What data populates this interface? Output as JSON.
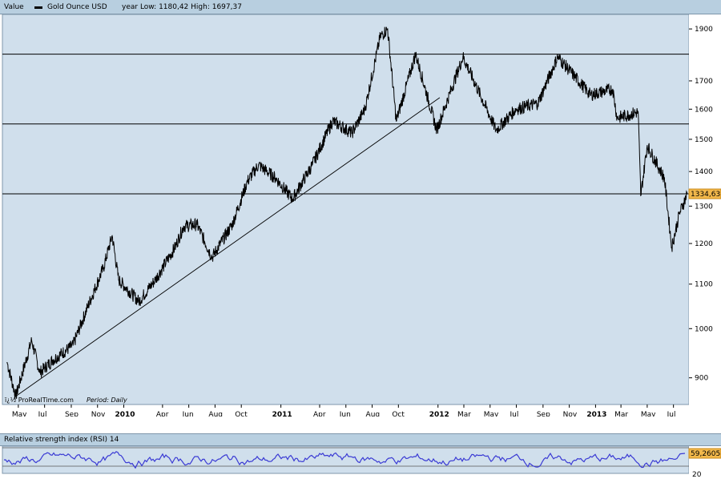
{
  "header": {
    "value_label": "Value",
    "series_name": "Gold Ounce USD",
    "year_range": "year Low: 1180,42 High: 1697,37"
  },
  "footer": {
    "credit": "ï¿½ ProRealTime.com",
    "period": "Period: Daily"
  },
  "rsi": {
    "title": "Relative strength index (RSI) 14",
    "last_value": "59,2605",
    "level_label": "20"
  },
  "colors": {
    "plot_bg": "#d0dfec",
    "price_line": "#000000",
    "rsi_line": "#3a3ad4",
    "marker_bg": "#f2b84b"
  },
  "chart_data": {
    "type": "line",
    "x_ticks": [
      "May",
      "Jul",
      "Sep",
      "Nov",
      "2010",
      "Apr",
      "Jun",
      "Aug",
      "Oct",
      "2011",
      "Apr",
      "Jun",
      "Aug",
      "Oct",
      "2012",
      "Mar",
      "May",
      "Jul",
      "Sep",
      "Nov",
      "2013",
      "Mar",
      "May",
      "Jul"
    ],
    "y_ticks": [
      900,
      1000,
      1100,
      1200,
      1300,
      1400,
      1500,
      1600,
      1700,
      1900
    ],
    "y_scale": "log",
    "ylim": [
      850,
      1960
    ],
    "series": [
      {
        "name": "Gold Ounce USD",
        "values": [
          [
            "2009-04-05",
            930
          ],
          [
            "2009-04-25",
            865
          ],
          [
            "2009-06-01",
            975
          ],
          [
            "2009-06-20",
            910
          ],
          [
            "2009-07-20",
            935
          ],
          [
            "2009-09-05",
            965
          ],
          [
            "2009-10-10",
            1050
          ],
          [
            "2009-11-15",
            1140
          ],
          [
            "2009-12-05",
            1220
          ],
          [
            "2009-12-20",
            1110
          ],
          [
            "2010-02-05",
            1060
          ],
          [
            "2010-03-15",
            1110
          ],
          [
            "2010-04-30",
            1190
          ],
          [
            "2010-05-20",
            1245
          ],
          [
            "2010-06-20",
            1250
          ],
          [
            "2010-07-25",
            1165
          ],
          [
            "2010-09-10",
            1250
          ],
          [
            "2010-10-15",
            1370
          ],
          [
            "2010-11-10",
            1420
          ],
          [
            "2010-12-20",
            1380
          ],
          [
            "2011-01-28",
            1320
          ],
          [
            "2011-03-15",
            1420
          ],
          [
            "2011-05-01",
            1560
          ],
          [
            "2011-06-15",
            1520
          ],
          [
            "2011-07-15",
            1600
          ],
          [
            "2011-08-20",
            1870
          ],
          [
            "2011-09-06",
            1900
          ],
          [
            "2011-09-26",
            1560
          ],
          [
            "2011-11-10",
            1800
          ],
          [
            "2011-12-29",
            1530
          ],
          [
            "2012-02-28",
            1790
          ],
          [
            "2012-05-15",
            1530
          ],
          [
            "2012-06-30",
            1600
          ],
          [
            "2012-08-20",
            1620
          ],
          [
            "2012-10-05",
            1790
          ],
          [
            "2012-12-20",
            1650
          ],
          [
            "2013-02-10",
            1670
          ],
          [
            "2013-02-20",
            1570
          ],
          [
            "2013-04-10",
            1590
          ],
          [
            "2013-04-16",
            1330
          ],
          [
            "2013-05-01",
            1480
          ],
          [
            "2013-06-10",
            1380
          ],
          [
            "2013-06-27",
            1190
          ],
          [
            "2013-07-15",
            1280
          ],
          [
            "2013-08-02",
            1334.63
          ]
        ]
      }
    ],
    "hlines": [
      1800,
      1550,
      1334.63
    ],
    "trendline": [
      [
        "2009-04-25",
        865
      ],
      [
        "2012-01-05",
        1640
      ]
    ],
    "last_value": "1334,63"
  }
}
